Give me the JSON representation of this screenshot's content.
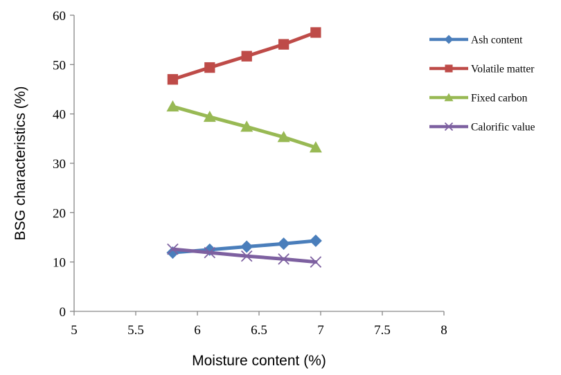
{
  "chart_data": {
    "type": "line",
    "title": "",
    "xlabel": "Moisture content (%)",
    "ylabel": "BSG characteristics (%)",
    "xlim": [
      5,
      8
    ],
    "ylim": [
      0,
      60
    ],
    "x_ticks": [
      "5",
      "5.5",
      "6",
      "6.5",
      "7",
      "7.5",
      "8"
    ],
    "y_ticks": [
      "0",
      "10",
      "20",
      "30",
      "40",
      "50",
      "60"
    ],
    "grid": false,
    "legend_position": "right",
    "x": [
      5.8,
      6.1,
      6.4,
      6.7,
      6.96
    ],
    "series": [
      {
        "name": "Ash content",
        "color": "#4a7ebb",
        "marker": "diamond",
        "values": [
          11.9,
          12.5,
          13.1,
          13.7,
          14.3
        ]
      },
      {
        "name": "Volatile matter",
        "color": "#be4b48",
        "marker": "square",
        "values": [
          47.0,
          49.4,
          51.7,
          54.1,
          56.5
        ]
      },
      {
        "name": "Fixed carbon",
        "color": "#98b954",
        "marker": "triangle",
        "values": [
          41.5,
          39.4,
          37.4,
          35.3,
          33.2
        ]
      },
      {
        "name": "Calorific value",
        "color": "#7d60a0",
        "marker": "x",
        "values": [
          12.6,
          11.9,
          11.2,
          10.6,
          10.0
        ]
      }
    ]
  }
}
